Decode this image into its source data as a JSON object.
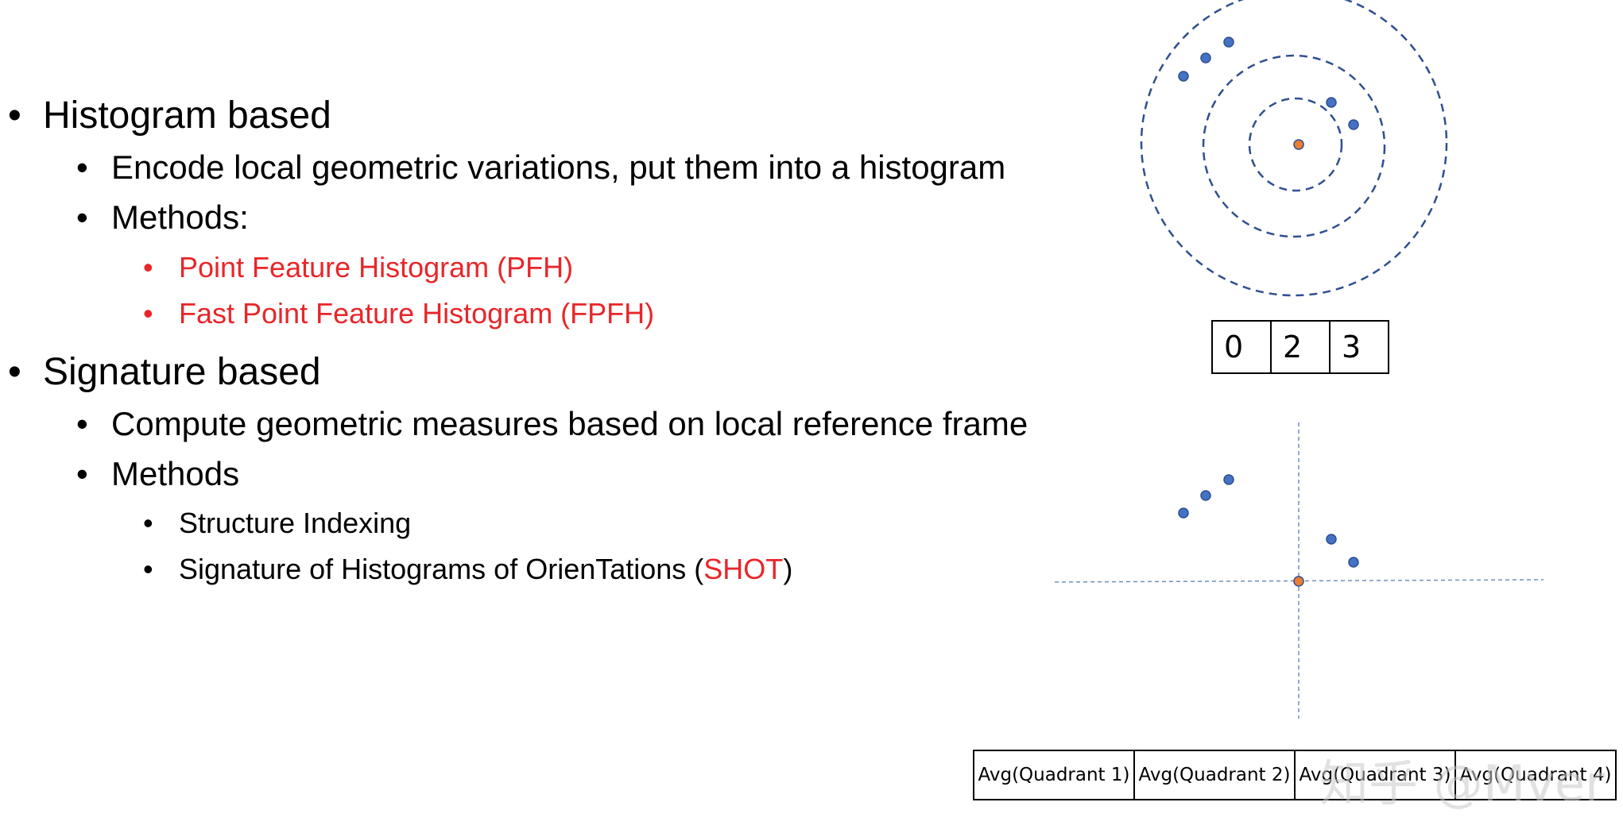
{
  "bullets": {
    "histogram": {
      "title": "Histogram based",
      "encode": "Encode local geometric variations, put them into a histogram",
      "methods_label": "Methods:",
      "pfh": "Point Feature Histogram (PFH)",
      "fpfh": "Fast Point Feature Histogram (FPFH)"
    },
    "signature": {
      "title": "Signature based",
      "compute": "Compute geometric measures based on local reference frame",
      "methods_label": "Methods",
      "structure_indexing": "Structure Indexing",
      "shot_prefix": "Signature of Histograms of OrienTations (",
      "shot_acronym": "SHOT",
      "shot_suffix": ")"
    }
  },
  "histogram_bins": [
    "0",
    "2",
    "3"
  ],
  "quadrant_cells": [
    "Avg(Quadrant 1)",
    "Avg(Quadrant 2)",
    "Avg(Quadrant 3)",
    "Avg(Quadrant 4)"
  ],
  "watermark": "知乎 @Mver",
  "colors": {
    "point": "#4472c4",
    "center": "#ed7d31",
    "circle": "#2f4f8f",
    "axis": "#6f8fc0",
    "highlight": "#e8262a"
  }
}
